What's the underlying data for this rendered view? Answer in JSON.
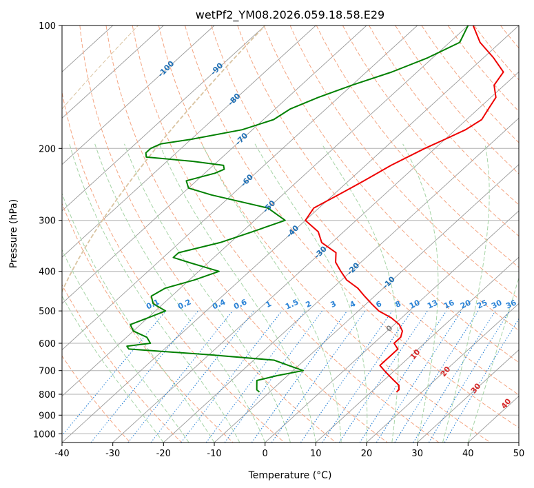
{
  "chart_data": {
    "type": "line",
    "subtype": "skew-t log-p diagram",
    "title": "wetPf2_YM08.2026.059.18.58.E29",
    "xlabel": "Temperature (°C)",
    "ylabel": "Pressure (hPa)",
    "xlim": [
      -40,
      50
    ],
    "ylim": [
      1050,
      100
    ],
    "y_scale": "log",
    "grid": true,
    "x_ticks": [
      -40,
      -30,
      -20,
      -10,
      0,
      10,
      20,
      30,
      40,
      50
    ],
    "y_ticks": [
      100,
      200,
      300,
      400,
      500,
      600,
      700,
      800,
      900,
      1000
    ],
    "colors": {
      "temperature": "#ee0000",
      "dewpoint": "#008000",
      "grid": "#b0b0b0",
      "isotherm": "#9a9a9a",
      "dry_adiabat": "#f4a582",
      "moist_adiabat": "#a6d4a6",
      "mixing_ratio": "#2b83d6",
      "skewed_isotherm_label": "#1f6fb4",
      "adiabat_label": "#d62728",
      "saturation_curve": "#d9c3a0"
    },
    "series": [
      {
        "key": "temperature",
        "pressure": [
          100,
          110,
          120,
          130,
          140,
          150,
          160,
          170,
          180,
          190,
          200,
          220,
          240,
          260,
          280,
          300,
          320,
          340,
          360,
          380,
          400,
          420,
          440,
          460,
          480,
          500,
          520,
          540,
          560,
          580,
          600,
          620,
          640,
          660,
          680,
          700,
          720,
          740,
          760,
          780,
          790
        ],
        "values": [
          -49,
          -44,
          -38,
          -33,
          -32,
          -29,
          -28,
          -27,
          -28,
          -30,
          -32,
          -35,
          -37,
          -39,
          -41,
          -40,
          -35,
          -32,
          -27,
          -25,
          -22,
          -19,
          -15,
          -12,
          -9,
          -6,
          -2,
          1,
          3,
          4,
          4,
          6,
          6,
          6,
          6,
          8,
          10,
          12,
          14,
          15,
          15
        ]
      },
      {
        "key": "dewpoint",
        "pressure": [
          100,
          110,
          120,
          130,
          140,
          150,
          160,
          170,
          180,
          190,
          195,
          200,
          205,
          210,
          215,
          220,
          225,
          230,
          235,
          240,
          250,
          260,
          280,
          300,
          320,
          340,
          360,
          370,
          380,
          400,
          420,
          440,
          460,
          480,
          500,
          520,
          540,
          560,
          580,
          600,
          610,
          620,
          640,
          660,
          680,
          700,
          720,
          740,
          760,
          780,
          790
        ],
        "values": [
          -50,
          -48,
          -51,
          -55,
          -60,
          -64,
          -67,
          -68,
          -72,
          -80,
          -85,
          -86,
          -86,
          -85,
          -75,
          -68,
          -67,
          -68,
          -70,
          -72,
          -70,
          -64,
          -50,
          -44,
          -48,
          -52,
          -58,
          -58,
          -54,
          -46,
          -49,
          -53,
          -54,
          -52,
          -48,
          -50,
          -52,
          -50,
          -46,
          -44,
          -48,
          -47,
          -30,
          -16,
          -12,
          -8,
          -12,
          -15,
          -14,
          -13,
          -12
        ]
      }
    ],
    "skewed_isotherm_labels": [
      "-100",
      "-90",
      "-80",
      "-70",
      "-60",
      "-50",
      "-40",
      "-30",
      "-20",
      "-10",
      "0"
    ],
    "dry_adiabat_labels": [
      "10",
      "20",
      "30",
      "40"
    ],
    "mixing_ratio_labels": [
      "0.1",
      "0.2",
      "0.4",
      "0.6",
      "1",
      "1.5",
      "2",
      "3",
      "4",
      "6",
      "8",
      "10",
      "13",
      "16",
      "20",
      "25",
      "30",
      "36"
    ]
  }
}
